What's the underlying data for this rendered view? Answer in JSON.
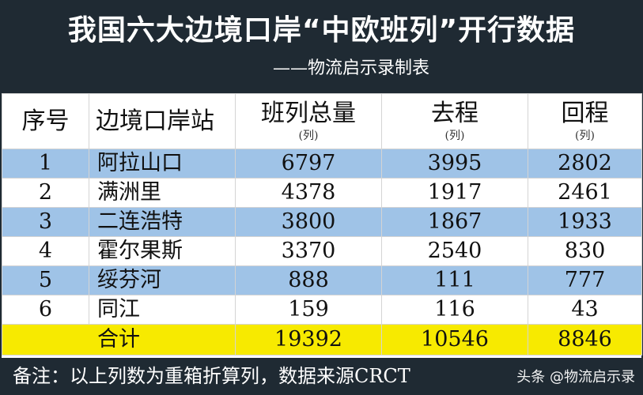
{
  "header": {
    "title": "我国六大边境口岸“中欧班列”开行数据",
    "subtitle": "——物流启示录制表"
  },
  "table": {
    "columns": [
      {
        "label": "序号",
        "unit": ""
      },
      {
        "label": "边境口岸站",
        "unit": ""
      },
      {
        "label": "班列总量",
        "unit": "(列)"
      },
      {
        "label": "去程",
        "unit": "(列)"
      },
      {
        "label": "回程",
        "unit": "(列)"
      }
    ],
    "rows": [
      {
        "index": "1",
        "station": "阿拉山口",
        "total": "6797",
        "outbound": "3995",
        "inbound": "2802"
      },
      {
        "index": "2",
        "station": "满洲里",
        "total": "4378",
        "outbound": "1917",
        "inbound": "2461"
      },
      {
        "index": "3",
        "station": "二连浩特",
        "total": "3800",
        "outbound": "1867",
        "inbound": "1933"
      },
      {
        "index": "4",
        "station": "霍尔果斯",
        "total": "3370",
        "outbound": "2540",
        "inbound": "830"
      },
      {
        "index": "5",
        "station": "绥芬河",
        "total": "888",
        "outbound": "111",
        "inbound": "777"
      },
      {
        "index": "6",
        "station": "同江",
        "total": "159",
        "outbound": "116",
        "inbound": "43"
      }
    ],
    "summary": {
      "label": "合计",
      "total": "19392",
      "outbound": "10546",
      "inbound": "8846"
    }
  },
  "footer": {
    "note": "备注：以上列数为重箱折算列，数据来源CRCT",
    "watermark": "头条 @物流启示录"
  },
  "colors": {
    "header_bg": "#1f2a33",
    "row_blue": "#9fc3e7",
    "summary_yellow": "#f7ea00"
  }
}
